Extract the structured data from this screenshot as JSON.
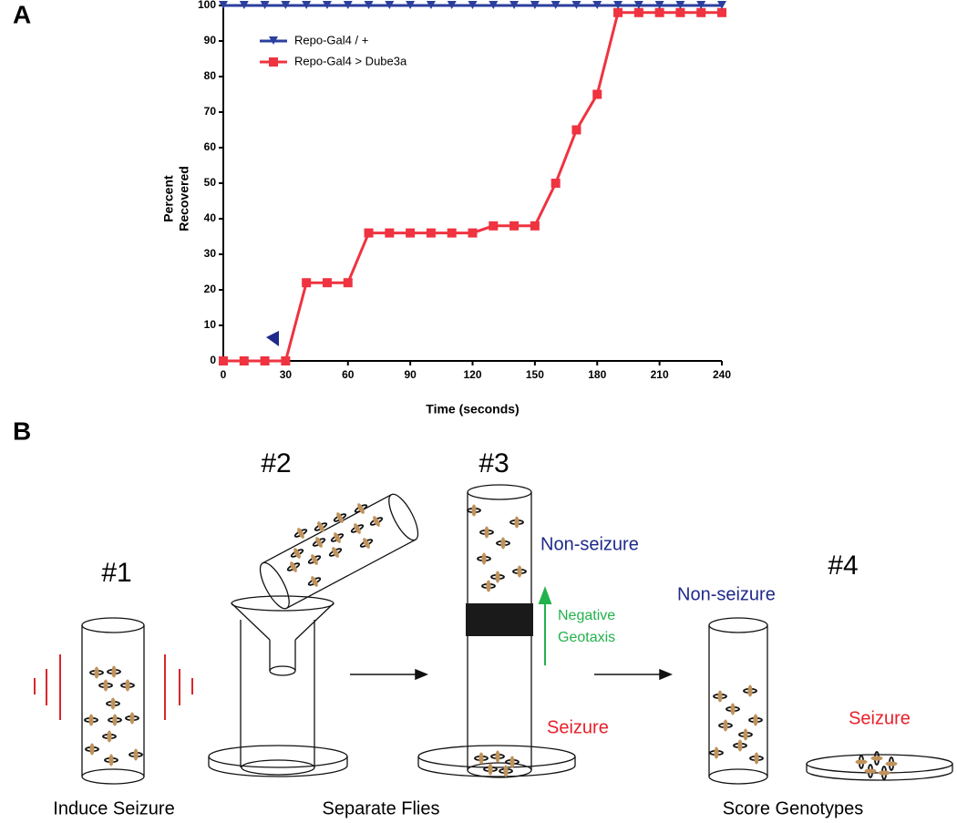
{
  "panel_labels": [
    "A",
    "B"
  ],
  "chart_data": {
    "type": "line",
    "x_label": "Time (seconds)",
    "y_label_lines": [
      "Percent",
      "Recovered"
    ],
    "x": [
      0,
      10,
      20,
      30,
      40,
      50,
      60,
      70,
      80,
      90,
      100,
      110,
      120,
      130,
      140,
      150,
      160,
      170,
      180,
      190,
      200,
      210,
      220,
      230,
      240
    ],
    "series": [
      {
        "name": "Repo-Gal4 / +",
        "color": "#2b3f9e",
        "marker": "triangle-down",
        "values": [
          100,
          100,
          100,
          100,
          100,
          100,
          100,
          100,
          100,
          100,
          100,
          100,
          100,
          100,
          100,
          100,
          100,
          100,
          100,
          100,
          100,
          100,
          100,
          100,
          100
        ]
      },
      {
        "name": "Repo-Gal4 > Dube3a",
        "color": "#ef3340",
        "marker": "square",
        "values": [
          0,
          0,
          0,
          0,
          22,
          22,
          22,
          36,
          36,
          36,
          36,
          36,
          36,
          38,
          38,
          38,
          50,
          65,
          75,
          98,
          98,
          98,
          98,
          98,
          98
        ]
      }
    ],
    "xlim": [
      0,
      240
    ],
    "ylim": [
      0,
      100
    ],
    "xticks": [
      0,
      30,
      60,
      90,
      120,
      150,
      180,
      210,
      240
    ],
    "yticks": [
      0,
      10,
      20,
      30,
      40,
      50,
      60,
      70,
      80,
      90,
      100
    ],
    "legend": "upper left"
  },
  "diagram": {
    "steps": [
      "#1",
      "#2",
      "#3",
      "#4"
    ],
    "captions": [
      "Induce Seizure",
      "Separate Flies",
      "Score Genotypes"
    ],
    "labels": [
      "Non-seizure",
      "Seizure",
      "Non-seizure",
      "Seizure"
    ],
    "geotaxis_lines": [
      "Negative",
      "Geotaxis"
    ]
  }
}
